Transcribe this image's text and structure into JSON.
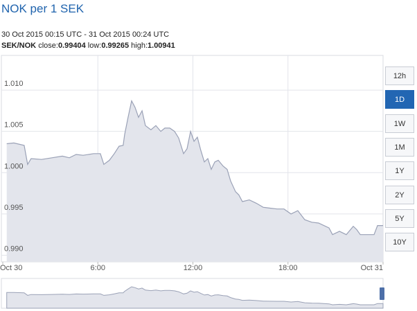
{
  "chart_data": {
    "type": "area",
    "title": "NOK per 1 SEK",
    "subtitle": "30 Oct 2015 00:15 UTC - 31 Oct 2015 00:24 UTC",
    "pair": "SEK/NOK",
    "stats": [
      {
        "label": "close:",
        "value": 0.99404
      },
      {
        "label": "low:",
        "value": 0.99265
      },
      {
        "label": "high:",
        "value": 1.00941
      }
    ],
    "range_buttons": {
      "options": [
        "12h",
        "1D",
        "1W",
        "1M",
        "1Y",
        "2Y",
        "5Y",
        "10Y"
      ],
      "selected": "1D"
    },
    "x": [
      0.25,
      0.7,
      1.35,
      1.57,
      1.79,
      2.45,
      3.1,
      3.76,
      4.2,
      4.63,
      5.07,
      5.73,
      6.16,
      6.38,
      6.73,
      7.04,
      7.34,
      7.6,
      7.69,
      7.91,
      8.13,
      8.35,
      8.57,
      8.79,
      9.0,
      9.35,
      9.66,
      9.97,
      10.23,
      10.54,
      10.84,
      11.1,
      11.41,
      11.63,
      11.85,
      12.07,
      12.28,
      12.5,
      12.72,
      12.94,
      13.16,
      13.38,
      13.6,
      13.9,
      14.16,
      14.38,
      14.69,
      14.9,
      15.12,
      15.56,
      16.0,
      16.44,
      16.87,
      17.31,
      17.75,
      18.19,
      18.62,
      19.06,
      19.5,
      19.93,
      20.59,
      20.81,
      21.25,
      21.68,
      22.12,
      22.34,
      22.56,
      23.0,
      23.43,
      23.65,
      24.0
    ],
    "values": [
      1.0035,
      1.0036,
      1.0033,
      1.001,
      1.0017,
      1.0016,
      1.0018,
      1.002,
      1.0018,
      1.0022,
      1.0021,
      1.0023,
      1.0023,
      1.001,
      1.0015,
      1.0023,
      1.0032,
      1.0033,
      1.0046,
      1.0067,
      1.0087,
      1.0079,
      1.0067,
      1.0075,
      1.0057,
      1.0052,
      1.0057,
      1.005,
      1.0054,
      1.0054,
      1.005,
      1.0042,
      1.0023,
      1.0029,
      1.005,
      1.0038,
      1.0043,
      1.0027,
      1.0013,
      1.0017,
      1.0004,
      1.0013,
      1.0015,
      1.0008,
      1.0004,
      0.999,
      0.9977,
      0.9973,
      0.9965,
      0.9967,
      0.9963,
      0.9958,
      0.9957,
      0.9956,
      0.9956,
      0.995,
      0.9954,
      0.9943,
      0.994,
      0.9939,
      0.9933,
      0.9925,
      0.9929,
      0.9925,
      0.9935,
      0.9931,
      0.9925,
      0.9925,
      0.9925,
      0.9936,
      0.9936
    ],
    "color": "#9aa1b6",
    "fill": "#e3e5ec",
    "xlim": [
      0,
      24
    ],
    "xticks": [
      {
        "value": 0,
        "label": "Oct 30"
      },
      {
        "value": 6,
        "label": "6:00"
      },
      {
        "value": 12,
        "label": "12:00"
      },
      {
        "value": 18,
        "label": "18:00"
      },
      {
        "value": 24,
        "label": "Oct 31"
      }
    ],
    "ylim": [
      0.9892,
      1.0142
    ],
    "yticks": [
      {
        "value": 1.01,
        "label": "1.010"
      },
      1.005,
      {
        "value": 1.0,
        "label": "1.000"
      },
      0.995,
      {
        "value": 0.99,
        "label": "0.990"
      }
    ],
    "grid": true
  }
}
